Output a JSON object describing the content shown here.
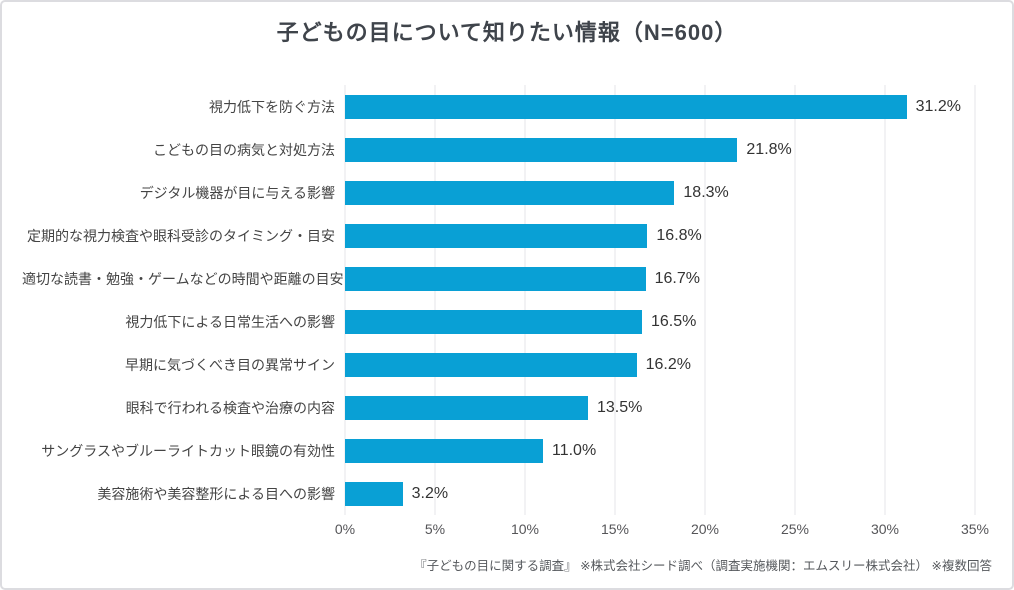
{
  "title": "子どもの目について知りたい情報（N=600）",
  "source_note": "『子どもの目に関する調査』 ※株式会社シード調べ（調査実施機関：エムスリー株式会社） ※複数回答",
  "colors": {
    "bar": "#09a0d5",
    "grid": "#e4e4e8",
    "title_text": "#3f444b",
    "label_text": "#444444",
    "value_text": "#333333",
    "tick_text": "#555558",
    "frame_border": "#dcdce0"
  },
  "chart_data": {
    "type": "bar",
    "orientation": "horizontal",
    "title": "子どもの目について知りたい情報（N=600）",
    "categories": [
      "視力低下を防ぐ方法",
      "こどもの目の病気と対処方法",
      "デジタル機器が目に与える影響",
      "定期的な視力検査や眼科受診のタイミング・目安",
      "適切な読書・勉強・ゲームなどの時間や距離の目安",
      "視力低下による日常生活への影響",
      "早期に気づくべき目の異常サイン",
      "眼科で行われる検査や治療の内容",
      "サングラスやブルーライトカット眼鏡の有効性",
      "美容施術や美容整形による目への影響"
    ],
    "values": [
      31.2,
      21.8,
      18.3,
      16.8,
      16.7,
      16.5,
      16.2,
      13.5,
      11.0,
      3.2
    ],
    "value_labels": [
      "31.2%",
      "21.8%",
      "18.3%",
      "16.8%",
      "16.7%",
      "16.5%",
      "16.2%",
      "13.5%",
      "11.0%",
      "3.2%"
    ],
    "xlabel": "",
    "ylabel": "",
    "xlim": [
      0,
      35
    ],
    "x_ticks": [
      "0%",
      "5%",
      "10%",
      "15%",
      "20%",
      "25%",
      "30%",
      "35%"
    ],
    "grid": true,
    "value_label_position": "end",
    "legend": false
  }
}
